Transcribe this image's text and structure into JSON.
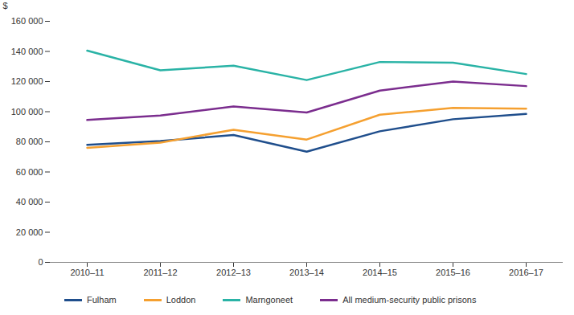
{
  "chart_data": {
    "type": "line",
    "y_label": "$",
    "categories": [
      "2010–11",
      "2011–12",
      "2012–13",
      "2013–14",
      "2014–15",
      "2015–16",
      "2016–17"
    ],
    "series": [
      {
        "name": "Fulham",
        "color": "#1f4e8c",
        "values": [
          78000,
          80500,
          84500,
          73500,
          87000,
          95000,
          98500
        ]
      },
      {
        "name": "Loddon",
        "color": "#f5a030",
        "values": [
          76000,
          79500,
          88000,
          81500,
          98000,
          102500,
          102000
        ]
      },
      {
        "name": "Marngoneet",
        "color": "#2ab3a6",
        "values": [
          140500,
          127500,
          130500,
          121000,
          133000,
          132500,
          125000
        ]
      },
      {
        "name": "All medium-security public prisons",
        "color": "#7b2d8e",
        "values": [
          94500,
          97500,
          103500,
          99500,
          114000,
          120000,
          117000
        ]
      }
    ],
    "ylim": [
      0,
      160000
    ],
    "yticks": [
      0,
      {
        "value": 20000,
        "label": "20 000"
      },
      {
        "value": 40000,
        "label": "40 000"
      },
      {
        "value": 60000,
        "label": "60 000"
      },
      {
        "value": 80000,
        "label": "80 000"
      },
      {
        "value": 100000,
        "label": "100 000"
      },
      {
        "value": 120000,
        "label": "120 000"
      },
      {
        "value": 140000,
        "label": "140 000"
      },
      {
        "value": 160000,
        "label": "160 000"
      }
    ],
    "grid": false,
    "legend": "bottom"
  }
}
